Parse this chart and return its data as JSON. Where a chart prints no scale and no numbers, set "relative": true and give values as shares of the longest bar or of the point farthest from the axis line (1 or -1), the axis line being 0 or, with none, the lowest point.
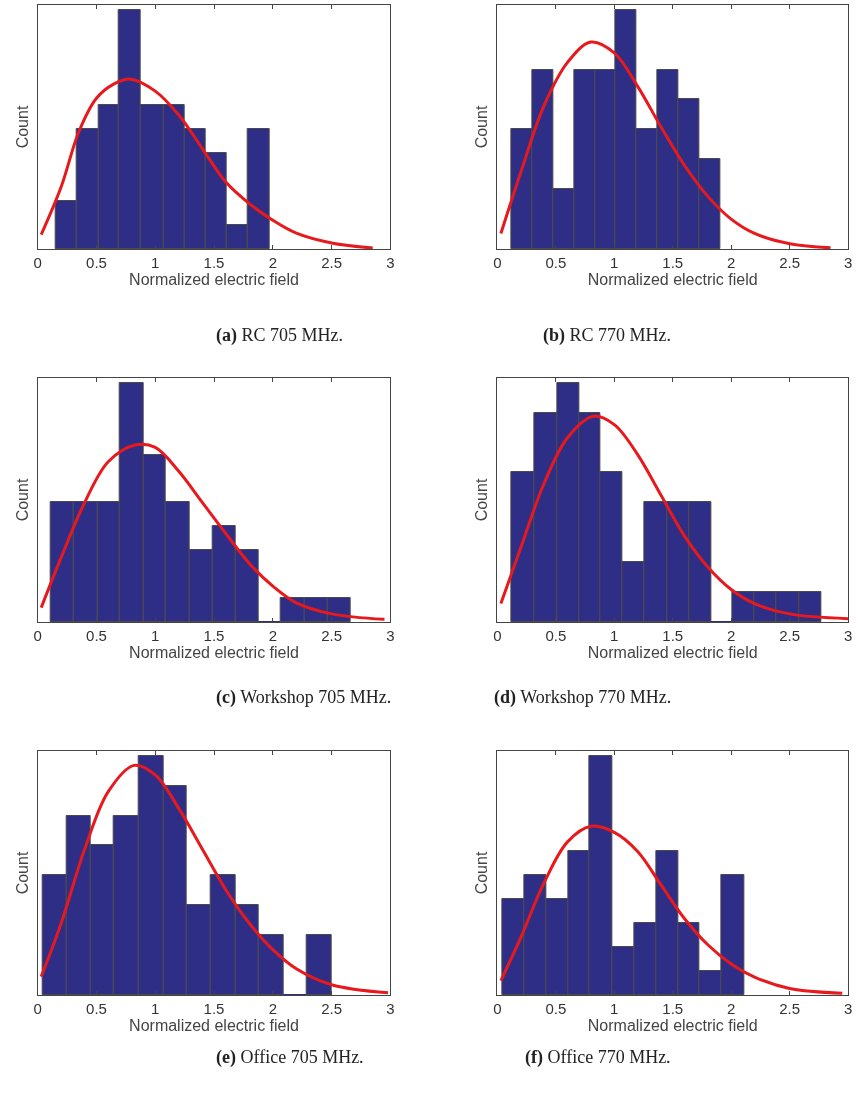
{
  "chart_data": [
    {
      "type": "histogram",
      "title": "(a) RC 705 MHz.",
      "xlabel": "Normalized electric field",
      "ylabel": "Count",
      "relative": true,
      "tick_labels": "x",
      "xlim": [
        0,
        3
      ],
      "xticks": [
        0,
        0.5,
        1,
        1.5,
        2,
        2.5,
        3
      ],
      "series": [
        {
          "color": "#2e2e87",
          "bins": [
            0.15,
            0.33,
            0.52,
            0.69,
            0.88,
            1.07,
            1.25,
            1.43,
            1.61,
            1.79,
            1.97
          ],
          "values": [
            0.2,
            0.5,
            0.6,
            1,
            0.6,
            0.6,
            0.5,
            0.4,
            0.1,
            0.5
          ]
        },
        {
          "type": "line",
          "color": "#e8191c",
          "x": [
            0.03,
            0.2,
            0.35,
            0.5,
            0.65,
            0.79,
            1.0,
            1.2,
            1.4,
            1.6,
            1.8,
            2.0,
            2.2,
            2.5,
            2.85
          ],
          "values": [
            0.06,
            0.26,
            0.49,
            0.63,
            0.69,
            0.71,
            0.66,
            0.56,
            0.42,
            0.28,
            0.19,
            0.12,
            0.066,
            0.025,
            0.004
          ]
        }
      ]
    },
    {
      "type": "histogram",
      "title": "(b) RC 770 MHz.",
      "xlabel": "Normalized electric field",
      "ylabel": "Count",
      "relative": true,
      "tick_labels": "x",
      "xlim": [
        0,
        3
      ],
      "xticks": [
        0,
        0.5,
        1,
        1.5,
        2,
        2.5,
        3
      ],
      "series": [
        {
          "color": "#2e2e87",
          "bins": [
            0.12,
            0.3,
            0.48,
            0.66,
            0.84,
            1.01,
            1.19,
            1.37,
            1.55,
            1.73,
            1.91
          ],
          "values": [
            0.5,
            0.75,
            0.25,
            0.75,
            0.75,
            1,
            0.5,
            0.75,
            0.625,
            0.375
          ]
        },
        {
          "type": "line",
          "color": "#e8191c",
          "x": [
            0.03,
            0.2,
            0.4,
            0.6,
            0.8,
            1.0,
            1.2,
            1.4,
            1.6,
            1.8,
            2.0,
            2.2,
            2.5,
            2.85
          ],
          "values": [
            0.065,
            0.32,
            0.6,
            0.78,
            0.865,
            0.82,
            0.68,
            0.51,
            0.35,
            0.22,
            0.125,
            0.065,
            0.022,
            0.005
          ]
        }
      ]
    },
    {
      "type": "histogram",
      "title": "(c) Workshop 705 MHz.",
      "xlabel": "Normalized electric field",
      "ylabel": "Count",
      "relative": true,
      "tick_labels": "x",
      "xlim": [
        0,
        3
      ],
      "xticks": [
        0,
        0.5,
        1,
        1.5,
        2,
        2.5,
        3
      ],
      "series": [
        {
          "color": "#2e2e87",
          "bins": [
            0.11,
            0.31,
            0.51,
            0.7,
            0.9,
            1.09,
            1.29,
            1.49,
            1.68,
            1.88,
            2.07,
            2.27,
            2.47,
            2.66
          ],
          "values": [
            0.5,
            0.5,
            0.5,
            1,
            0.7,
            0.5,
            0.3,
            0.4,
            0.3,
            0,
            0.1,
            0.1,
            0.1
          ]
        },
        {
          "type": "line",
          "color": "#e8191c",
          "x": [
            0.03,
            0.2,
            0.4,
            0.6,
            0.83,
            1.0,
            1.2,
            1.4,
            1.6,
            1.8,
            2.0,
            2.2,
            2.5,
            2.95
          ],
          "values": [
            0.06,
            0.27,
            0.5,
            0.67,
            0.74,
            0.73,
            0.63,
            0.5,
            0.37,
            0.245,
            0.15,
            0.08,
            0.034,
            0.011
          ]
        }
      ]
    },
    {
      "type": "histogram",
      "title": "(d) Workshop 770 MHz.",
      "xlabel": "Normalized electric field",
      "ylabel": "Count",
      "relative": true,
      "tick_labels": "x",
      "xlim": [
        0,
        3
      ],
      "xticks": [
        0,
        0.5,
        1,
        1.5,
        2,
        2.5,
        3
      ],
      "series": [
        {
          "color": "#2e2e87",
          "bins": [
            0.12,
            0.32,
            0.51,
            0.7,
            0.88,
            1.07,
            1.26,
            1.45,
            1.64,
            1.83,
            2.01,
            2.2,
            2.39,
            2.58,
            2.77
          ],
          "values": [
            0.625,
            0.875,
            1,
            0.875,
            0.625,
            0.25,
            0.5,
            0.5,
            0.5,
            0,
            0.125,
            0.125,
            0.125,
            0.125
          ]
        },
        {
          "type": "line",
          "color": "#e8191c",
          "x": [
            0.03,
            0.2,
            0.4,
            0.6,
            0.82,
            1.0,
            1.2,
            1.4,
            1.6,
            1.8,
            2.0,
            2.2,
            2.5,
            3.0
          ],
          "values": [
            0.077,
            0.31,
            0.58,
            0.77,
            0.86,
            0.825,
            0.7,
            0.53,
            0.36,
            0.23,
            0.136,
            0.077,
            0.034,
            0.014
          ]
        }
      ]
    },
    {
      "type": "histogram",
      "title": "(e) Office 705 MHz.",
      "xlabel": "Normalized electric field",
      "ylabel": "Count",
      "relative": true,
      "tick_labels": "x",
      "xlim": [
        0,
        3
      ],
      "xticks": [
        0,
        0.5,
        1,
        1.5,
        2,
        2.5,
        3
      ],
      "series": [
        {
          "color": "#2e2e87",
          "bins": [
            0.04,
            0.25,
            0.45,
            0.65,
            0.86,
            1.07,
            1.27,
            1.47,
            1.68,
            1.88,
            2.09,
            2.29,
            2.5
          ],
          "values": [
            0.5,
            0.75,
            0.625,
            0.75,
            1,
            0.875,
            0.375,
            0.5,
            0.375,
            0.25,
            0,
            0.25
          ]
        },
        {
          "type": "line",
          "color": "#e8191c",
          "x": [
            0.03,
            0.2,
            0.4,
            0.6,
            0.82,
            1.0,
            1.2,
            1.4,
            1.6,
            1.8,
            2.0,
            2.2,
            2.5,
            2.98
          ],
          "values": [
            0.077,
            0.3,
            0.61,
            0.85,
            0.96,
            0.92,
            0.78,
            0.61,
            0.44,
            0.3,
            0.19,
            0.11,
            0.043,
            0.009
          ]
        }
      ]
    },
    {
      "type": "histogram",
      "title": "(f) Office 770 MHz.",
      "xlabel": "Normalized electric field",
      "ylabel": "Count",
      "relative": true,
      "tick_labels": "x",
      "xlim": [
        0,
        3
      ],
      "xticks": [
        0,
        0.5,
        1,
        1.5,
        2,
        2.5,
        3
      ],
      "series": [
        {
          "color": "#2e2e87",
          "bins": [
            0.04,
            0.23,
            0.42,
            0.61,
            0.79,
            0.98,
            1.17,
            1.36,
            1.55,
            1.73,
            1.92,
            2.11
          ],
          "values": [
            0.4,
            0.5,
            0.4,
            0.6,
            1,
            0.2,
            0.3,
            0.6,
            0.3,
            0.1,
            0.5
          ]
        },
        {
          "type": "line",
          "color": "#e8191c",
          "x": [
            0.03,
            0.2,
            0.4,
            0.6,
            0.8,
            1.0,
            1.2,
            1.4,
            1.6,
            1.8,
            2.0,
            2.2,
            2.5,
            2.95
          ],
          "values": [
            0.06,
            0.24,
            0.47,
            0.64,
            0.705,
            0.68,
            0.6,
            0.46,
            0.32,
            0.21,
            0.13,
            0.075,
            0.027,
            0.007
          ]
        }
      ]
    }
  ]
}
